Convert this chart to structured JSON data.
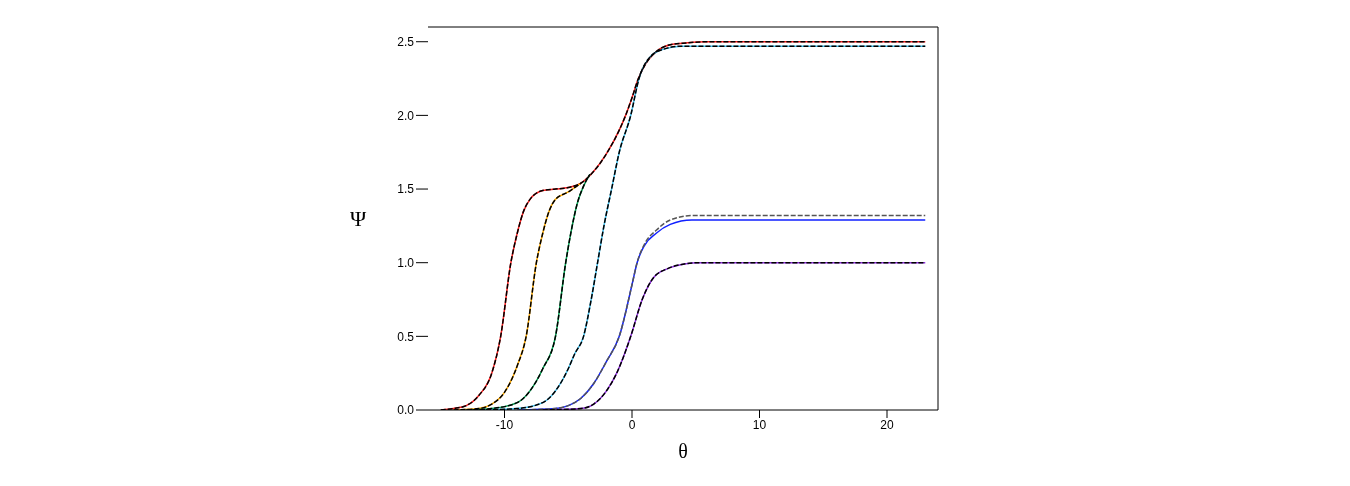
{
  "chart_data": {
    "type": "line",
    "xlabel": "θ",
    "ylabel": "Ψ",
    "xlim": [
      -16,
      24
    ],
    "ylim": [
      0,
      2.6
    ],
    "xticks": [
      -10,
      0,
      10,
      20
    ],
    "yticks": [
      {
        "value": 0,
        "label": "0.0"
      },
      {
        "value": 0.5,
        "label": "0.5"
      },
      {
        "value": 1,
        "label": "1.0"
      },
      {
        "value": 1.5,
        "label": "1.5"
      },
      {
        "value": 2,
        "label": "2.0"
      },
      {
        "value": 2.5,
        "label": "2.5"
      }
    ],
    "marker": "none",
    "series": [
      {
        "color": "#ff2020",
        "line_style": "solid",
        "x": [
          -15,
          -14,
          -13,
          -12,
          -11,
          -10.3,
          -9.5,
          -9,
          -8.5,
          -8,
          -7,
          -6,
          -5,
          -4,
          -3,
          -2,
          -1,
          -0.5,
          0,
          0.5,
          1,
          2,
          3,
          4,
          6,
          23
        ],
        "values": [
          0,
          0.01,
          0.03,
          0.1,
          0.25,
          0.5,
          1.0,
          1.2,
          1.35,
          1.43,
          1.49,
          1.5,
          1.51,
          1.54,
          1.62,
          1.74,
          1.9,
          2.0,
          2.12,
          2.25,
          2.34,
          2.44,
          2.48,
          2.49,
          2.5,
          2.5
        ]
      },
      {
        "color": "#ffaa00",
        "line_style": "solid",
        "x": [
          -14,
          -12,
          -11,
          -10,
          -9,
          -8.3,
          -7.5,
          -7,
          -6.5,
          -6,
          -5,
          -4.5,
          -4
        ],
        "values": [
          0,
          0.01,
          0.04,
          0.12,
          0.3,
          0.5,
          1.0,
          1.2,
          1.35,
          1.43,
          1.48,
          1.51,
          1.54
        ]
      },
      {
        "color": "#00a050",
        "line_style": "solid",
        "x": [
          -13,
          -11,
          -9,
          -8,
          -7,
          -6,
          -5.2,
          -4.8,
          -4.3,
          -3.8,
          -3.3
        ],
        "values": [
          0,
          0.01,
          0.05,
          0.13,
          0.28,
          0.5,
          1.0,
          1.2,
          1.4,
          1.52,
          1.6
        ]
      },
      {
        "color": "#40c0f0",
        "line_style": "solid",
        "x": [
          -12,
          -9,
          -7,
          -6,
          -5,
          -4.5,
          -3.8,
          -3.2,
          -2.7,
          -2.2,
          -1.6,
          -1,
          -0.1,
          0.55,
          1.45,
          2.5,
          3.9,
          23
        ],
        "values": [
          0,
          0.01,
          0.05,
          0.13,
          0.28,
          0.38,
          0.5,
          0.75,
          1.0,
          1.25,
          1.5,
          1.75,
          2.0,
          2.25,
          2.4,
          2.45,
          2.47,
          2.47
        ]
      },
      {
        "color": "#1020ff",
        "line_style": "solid",
        "x": [
          -9,
          -6,
          -5,
          -4,
          -3,
          -2,
          -1,
          0,
          0.4,
          1,
          1.9,
          3,
          4.7,
          23
        ],
        "values": [
          0,
          0.01,
          0.03,
          0.08,
          0.18,
          0.33,
          0.5,
          0.85,
          1.0,
          1.12,
          1.2,
          1.26,
          1.29,
          1.29
        ]
      },
      {
        "color": "#9030e0",
        "line_style": "solid",
        "x": [
          -7,
          -4,
          -3,
          -2,
          -1.2,
          -0.1,
          0.8,
          1.7,
          2.8,
          4,
          5.3,
          23
        ],
        "values": [
          0,
          0.01,
          0.04,
          0.13,
          0.25,
          0.5,
          0.75,
          0.9,
          0.96,
          0.99,
          1.0,
          1.0
        ]
      },
      {
        "color": "#000000",
        "line_style": "dashed",
        "x": [
          -15,
          -14,
          -13,
          -12,
          -11,
          -10.3,
          -9.5,
          -9,
          -8.5,
          -8,
          -7,
          -6,
          -5,
          -4,
          -3,
          -2,
          -1,
          -0.5,
          0,
          0.5,
          1,
          2,
          3,
          4,
          6,
          23
        ],
        "values": [
          0,
          0.01,
          0.03,
          0.1,
          0.25,
          0.5,
          1.0,
          1.2,
          1.35,
          1.43,
          1.49,
          1.5,
          1.51,
          1.54,
          1.62,
          1.74,
          1.9,
          2.0,
          2.12,
          2.25,
          2.34,
          2.44,
          2.48,
          2.49,
          2.5,
          2.5
        ]
      },
      {
        "color": "#000000",
        "line_style": "dashed",
        "x": [
          -14,
          -12,
          -11,
          -10,
          -9,
          -8.3,
          -7.5,
          -7,
          -6.5,
          -6,
          -5,
          -4.5,
          -4
        ],
        "values": [
          0,
          0.01,
          0.04,
          0.12,
          0.3,
          0.5,
          1.0,
          1.2,
          1.35,
          1.43,
          1.48,
          1.51,
          1.54
        ]
      },
      {
        "color": "#000000",
        "line_style": "dashed",
        "x": [
          -13,
          -11,
          -9,
          -8,
          -7,
          -6,
          -5.2,
          -4.8,
          -4.3,
          -3.8,
          -3.3
        ],
        "values": [
          0,
          0.01,
          0.05,
          0.13,
          0.28,
          0.5,
          1.0,
          1.2,
          1.4,
          1.52,
          1.6
        ]
      },
      {
        "color": "#000000",
        "line_style": "dashed",
        "x": [
          -12,
          -9,
          -7,
          -6,
          -5,
          -4.5,
          -3.8,
          -3.2,
          -2.7,
          -2.2,
          -1.6,
          -1,
          -0.1,
          0.55,
          1.45,
          2.5,
          3.9,
          23
        ],
        "values": [
          0,
          0.01,
          0.05,
          0.13,
          0.28,
          0.38,
          0.5,
          0.75,
          1.0,
          1.25,
          1.5,
          1.75,
          2.0,
          2.25,
          2.4,
          2.45,
          2.47,
          2.47
        ]
      },
      {
        "color": "#555555",
        "line_style": "dashed",
        "x": [
          -9,
          -6,
          -5,
          -4,
          -3,
          -2,
          -1,
          0,
          0.4,
          1,
          1.9,
          3,
          4.7,
          23
        ],
        "values": [
          0,
          0.01,
          0.03,
          0.08,
          0.18,
          0.33,
          0.5,
          0.85,
          1.0,
          1.13,
          1.22,
          1.29,
          1.32,
          1.32
        ]
      },
      {
        "color": "#000000",
        "line_style": "dashed",
        "x": [
          -7,
          -4,
          -3,
          -2,
          -1.2,
          -0.1,
          0.8,
          1.7,
          2.8,
          4,
          5.3,
          23
        ],
        "values": [
          0,
          0.01,
          0.04,
          0.13,
          0.25,
          0.5,
          0.75,
          0.9,
          0.96,
          0.99,
          1.0,
          1.0
        ]
      }
    ]
  }
}
